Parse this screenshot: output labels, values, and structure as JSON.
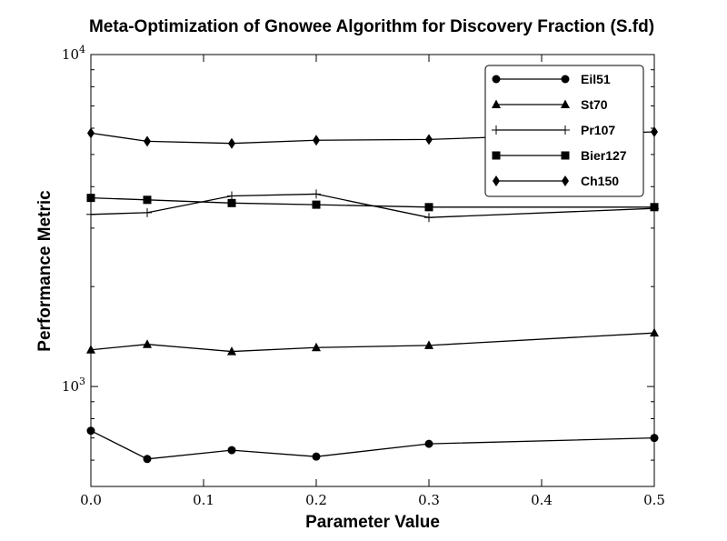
{
  "chart_data": {
    "type": "line",
    "title": "Meta-Optimization of Gnowee Algorithm for Discovery Fraction (S.fd)",
    "xlabel": "Parameter Value",
    "ylabel": "Performance Metric",
    "xscale": "linear",
    "yscale": "log",
    "xlim": [
      0.0,
      0.5
    ],
    "ylim": [
      500,
      10000
    ],
    "xticks": [
      "0.0",
      "0.1",
      "0.2",
      "0.3",
      "0.4",
      "0.5"
    ],
    "yticks": [
      {
        "base": "10",
        "exp": "3"
      },
      {
        "base": "10",
        "exp": "4"
      }
    ],
    "legend_position": "top-right",
    "grid": false,
    "x": [
      0.0,
      0.05,
      0.125,
      0.2,
      0.3,
      0.5
    ],
    "series": [
      {
        "name": "Eil51",
        "marker": "circle",
        "values": [
          736,
          605,
          643,
          615,
          672,
          700
        ]
      },
      {
        "name": "St70",
        "marker": "triangle",
        "values": [
          1290,
          1340,
          1275,
          1310,
          1330,
          1450
        ]
      },
      {
        "name": "Pr107",
        "marker": "plus",
        "values": [
          3300,
          3340,
          3750,
          3800,
          3230,
          3440
        ]
      },
      {
        "name": "Bier127",
        "marker": "square",
        "values": [
          3700,
          3650,
          3570,
          3530,
          3470,
          3470
        ]
      },
      {
        "name": "Ch150",
        "marker": "diamond",
        "values": [
          5800,
          5480,
          5400,
          5520,
          5550,
          5850
        ]
      }
    ]
  }
}
